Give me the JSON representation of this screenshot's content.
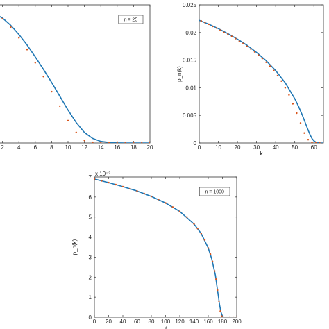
{
  "chart_data": [
    {
      "type": "line",
      "legend": "n = 25",
      "xlabel": "",
      "ylabel": "",
      "xlim": [
        0,
        20
      ],
      "xticks": [
        "2",
        "4",
        "6",
        "8",
        "10",
        "12",
        "14",
        "16",
        "18",
        "20"
      ],
      "yticks": [],
      "series": [
        {
          "kind": "line",
          "color": "#1f77b4",
          "x": [
            0,
            1,
            2,
            3,
            4,
            5,
            6,
            7,
            8,
            9,
            10,
            11,
            12,
            13,
            14,
            15,
            16,
            17,
            18,
            19,
            20
          ],
          "y": [
            1.0,
            0.985,
            0.95,
            0.895,
            0.825,
            0.745,
            0.655,
            0.56,
            0.46,
            0.355,
            0.25,
            0.155,
            0.08,
            0.035,
            0.012,
            0.004,
            0.001,
            0,
            0,
            0,
            0
          ]
        },
        {
          "kind": "points",
          "color": "#d95319",
          "x": [
            1,
            2,
            3,
            4,
            5,
            6,
            7,
            8,
            9,
            10,
            11,
            12,
            13,
            14,
            15,
            16,
            17,
            18,
            19,
            20
          ],
          "y": [
            0.985,
            0.945,
            0.88,
            0.8,
            0.71,
            0.61,
            0.505,
            0.39,
            0.28,
            0.17,
            0.08,
            0.02,
            0.005,
            0,
            0,
            0,
            0,
            0,
            0,
            0
          ]
        }
      ],
      "ylim": [
        0,
        1.05
      ]
    },
    {
      "type": "line",
      "legend": "",
      "xlabel": "k",
      "ylabel": "p_n(k)",
      "xlim": [
        0,
        65
      ],
      "ylim": [
        0,
        0.025
      ],
      "xticks": [
        "0",
        "10",
        "20",
        "30",
        "40",
        "50",
        "60"
      ],
      "yticks": [
        "0",
        "0.005",
        "0.01",
        "0.015",
        "0.02",
        "0.025"
      ],
      "series": [
        {
          "kind": "line",
          "color": "#1f77b4",
          "x": [
            0,
            5,
            10,
            15,
            20,
            25,
            30,
            35,
            40,
            45,
            50,
            52,
            54,
            56,
            57,
            58,
            59,
            60,
            61,
            62,
            63,
            64,
            65
          ],
          "y": [
            0.0222,
            0.0215,
            0.0207,
            0.0198,
            0.0188,
            0.0177,
            0.0164,
            0.0149,
            0.0131,
            0.0109,
            0.008,
            0.0066,
            0.005,
            0.0032,
            0.0023,
            0.0015,
            0.0008,
            0.0004,
            0.00015,
            5e-05,
            0,
            0,
            0
          ]
        },
        {
          "kind": "points",
          "color": "#d95319",
          "x": [
            1,
            3,
            5,
            7,
            9,
            11,
            13,
            15,
            17,
            19,
            21,
            23,
            25,
            27,
            29,
            31,
            33,
            35,
            37,
            39,
            41,
            43,
            45,
            47,
            49,
            51,
            53,
            55,
            57,
            59,
            61,
            63
          ],
          "y": [
            0.0221,
            0.0218,
            0.0215,
            0.0211,
            0.0208,
            0.0204,
            0.02,
            0.0197,
            0.0193,
            0.0189,
            0.0184,
            0.018,
            0.0175,
            0.017,
            0.0165,
            0.0159,
            0.0153,
            0.0146,
            0.0139,
            0.0131,
            0.0122,
            0.0112,
            0.01,
            0.0087,
            0.0071,
            0.0054,
            0.0036,
            0.0018,
            0.0006,
            0.0001,
            0,
            0
          ]
        }
      ]
    },
    {
      "type": "line",
      "legend": "n = 1000",
      "xlabel": "k",
      "ylabel": "p_n(k)",
      "ylabel_exp": "x 10⁻³",
      "xlim": [
        0,
        200
      ],
      "ylim": [
        0,
        7
      ],
      "xticks": [
        "0",
        "20",
        "40",
        "60",
        "80",
        "100",
        "120",
        "140",
        "160",
        "180",
        "200"
      ],
      "yticks": [
        "0",
        "1",
        "2",
        "3",
        "4",
        "5",
        "6",
        "7"
      ],
      "series": [
        {
          "kind": "line",
          "color": "#1f77b4",
          "x": [
            0,
            20,
            40,
            60,
            80,
            100,
            120,
            140,
            150,
            160,
            165,
            170,
            172,
            174,
            176,
            178,
            180,
            182,
            185,
            200
          ],
          "y": [
            6.9,
            6.72,
            6.52,
            6.3,
            6.03,
            5.7,
            5.28,
            4.65,
            4.18,
            3.45,
            2.9,
            2.1,
            1.6,
            1.1,
            0.6,
            0.25,
            0.05,
            0,
            0,
            0
          ]
        },
        {
          "kind": "points",
          "color": "#d95319",
          "x": [
            0,
            10,
            20,
            30,
            40,
            50,
            60,
            70,
            80,
            90,
            100,
            110,
            120,
            130,
            140,
            145,
            150,
            155,
            160,
            163,
            166,
            169,
            171,
            173,
            175,
            177,
            179,
            181,
            185,
            190,
            195,
            200
          ],
          "y": [
            6.9,
            6.81,
            6.72,
            6.62,
            6.52,
            6.41,
            6.3,
            6.17,
            6.03,
            5.88,
            5.7,
            5.5,
            5.28,
            5.0,
            4.65,
            4.43,
            4.18,
            3.86,
            3.45,
            3.15,
            2.78,
            2.3,
            1.9,
            1.35,
            0.8,
            0.3,
            0.05,
            0,
            0,
            0,
            0,
            0
          ]
        }
      ]
    }
  ]
}
